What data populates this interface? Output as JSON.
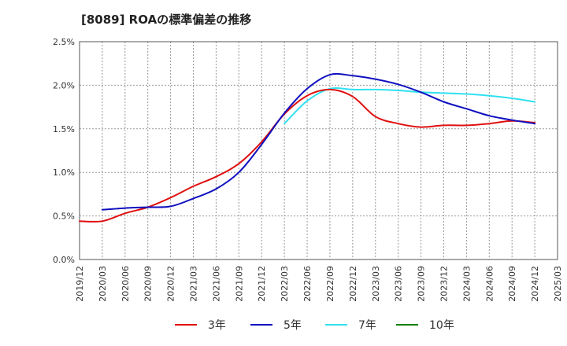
{
  "chart_data": {
    "type": "line",
    "title": "[8089]  ROAの標準偏差の推移",
    "x": [
      "2019/12",
      "2020/03",
      "2020/06",
      "2020/09",
      "2020/12",
      "2021/03",
      "2021/06",
      "2021/09",
      "2021/12",
      "2022/03",
      "2022/06",
      "2022/09",
      "2022/12",
      "2023/03",
      "2023/06",
      "2023/09",
      "2023/12",
      "2024/03",
      "2024/06",
      "2024/09",
      "2024/12",
      "2025/03"
    ],
    "y_ticks": [
      "0.0%",
      "0.5%",
      "1.0%",
      "1.5%",
      "2.0%",
      "2.5%"
    ],
    "ylim": [
      0,
      2.5
    ],
    "grid": true,
    "legend_position": "bottom",
    "series": [
      {
        "name": "3年",
        "color": "#e01010",
        "points": [
          [
            "2019/12",
            0.44
          ],
          [
            "2020/03",
            0.44
          ],
          [
            "2020/06",
            0.53
          ],
          [
            "2020/09",
            0.6
          ],
          [
            "2020/12",
            0.71
          ],
          [
            "2021/03",
            0.84
          ],
          [
            "2021/06",
            0.95
          ],
          [
            "2021/09",
            1.1
          ],
          [
            "2021/12",
            1.35
          ],
          [
            "2022/03",
            1.67
          ],
          [
            "2022/06",
            1.88
          ],
          [
            "2022/09",
            1.95
          ],
          [
            "2022/12",
            1.87
          ],
          [
            "2023/03",
            1.64
          ],
          [
            "2023/06",
            1.56
          ],
          [
            "2023/09",
            1.52
          ],
          [
            "2023/12",
            1.54
          ],
          [
            "2024/03",
            1.54
          ],
          [
            "2024/06",
            1.56
          ],
          [
            "2024/09",
            1.59
          ],
          [
            "2024/12",
            1.57
          ]
        ]
      },
      {
        "name": "5年",
        "color": "#1010c0",
        "points": [
          [
            "2020/03",
            0.57
          ],
          [
            "2020/06",
            0.59
          ],
          [
            "2020/09",
            0.6
          ],
          [
            "2020/12",
            0.61
          ],
          [
            "2021/03",
            0.7
          ],
          [
            "2021/06",
            0.81
          ],
          [
            "2021/09",
            1.0
          ],
          [
            "2021/12",
            1.32
          ],
          [
            "2022/03",
            1.68
          ],
          [
            "2022/06",
            1.96
          ],
          [
            "2022/09",
            2.12
          ],
          [
            "2022/12",
            2.11
          ],
          [
            "2023/03",
            2.07
          ],
          [
            "2023/06",
            2.01
          ],
          [
            "2023/09",
            1.92
          ],
          [
            "2023/12",
            1.81
          ],
          [
            "2024/03",
            1.73
          ],
          [
            "2024/06",
            1.65
          ],
          [
            "2024/09",
            1.6
          ],
          [
            "2024/12",
            1.56
          ]
        ]
      },
      {
        "name": "7年",
        "color": "#30e0f0",
        "points": [
          [
            "2022/03",
            1.56
          ],
          [
            "2022/06",
            1.82
          ],
          [
            "2022/09",
            1.96
          ],
          [
            "2022/12",
            1.95
          ],
          [
            "2023/03",
            1.95
          ],
          [
            "2023/06",
            1.94
          ],
          [
            "2023/09",
            1.92
          ],
          [
            "2023/12",
            1.91
          ],
          [
            "2024/03",
            1.9
          ],
          [
            "2024/06",
            1.88
          ],
          [
            "2024/09",
            1.85
          ],
          [
            "2024/12",
            1.81
          ]
        ]
      },
      {
        "name": "10年",
        "color": "#108010",
        "points": []
      }
    ]
  }
}
